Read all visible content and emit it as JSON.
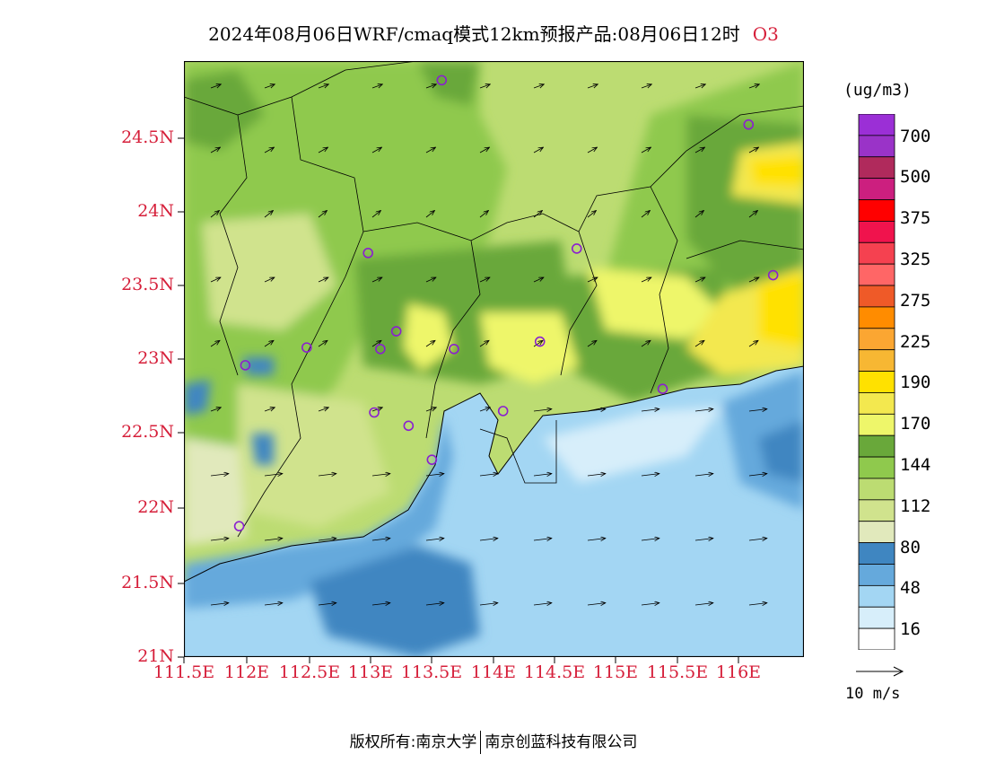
{
  "title": "2024年08月06日WRF/cmaq模式12km预报产品:08月06日12时",
  "variable": "O3",
  "axes": {
    "y_ticks": [
      "24.5N",
      "24N",
      "23.5N",
      "23N",
      "22.5N",
      "22N",
      "21.5N",
      "21N"
    ],
    "x_ticks": [
      "111.5E",
      "112E",
      "112.5E",
      "113E",
      "113.5E",
      "114E",
      "114.5E",
      "115E",
      "115.5E",
      "116E"
    ]
  },
  "legend": {
    "unit": "(ug/m3)",
    "labels": [
      "700",
      "500",
      "375",
      "325",
      "275",
      "225",
      "190",
      "170",
      "144",
      "112",
      "80",
      "48",
      "16"
    ],
    "colors": [
      "#9b2fd6",
      "#9a33c8",
      "#b02a5c",
      "#cc1f7f",
      "#ff0000",
      "#f0134d",
      "#f54150",
      "#ff6666",
      "#ef5a28",
      "#ff8c00",
      "#fba632",
      "#f7b733",
      "#ffe100",
      "#f3e84f",
      "#eef66a",
      "#69a83a",
      "#8fc94d",
      "#bcdc72",
      "#d0e38d",
      "#e1e9bc",
      "#3f86c1",
      "#65a9dc",
      "#a3d6f3",
      "#d7eefa",
      "#ffffff"
    ]
  },
  "vector_scale": "10 m/s",
  "footer": {
    "left": "版权所有:南京大学",
    "right": "南京创蓝科技有限公司"
  },
  "stations": [
    {
      "lon": 113.6,
      "lat": 24.87
    },
    {
      "lon": 116.1,
      "lat": 24.57
    },
    {
      "lon": 113.0,
      "lat": 23.7
    },
    {
      "lon": 114.7,
      "lat": 23.73
    },
    {
      "lon": 116.3,
      "lat": 23.55
    },
    {
      "lon": 112.5,
      "lat": 23.06
    },
    {
      "lon": 113.1,
      "lat": 23.05
    },
    {
      "lon": 113.23,
      "lat": 23.17
    },
    {
      "lon": 113.7,
      "lat": 23.05
    },
    {
      "lon": 114.4,
      "lat": 23.1
    },
    {
      "lon": 112.0,
      "lat": 22.94
    },
    {
      "lon": 113.05,
      "lat": 22.62
    },
    {
      "lon": 113.33,
      "lat": 22.53
    },
    {
      "lon": 114.1,
      "lat": 22.63
    },
    {
      "lon": 115.4,
      "lat": 22.78
    },
    {
      "lon": 113.52,
      "lat": 22.3
    },
    {
      "lon": 111.95,
      "lat": 21.85
    }
  ]
}
